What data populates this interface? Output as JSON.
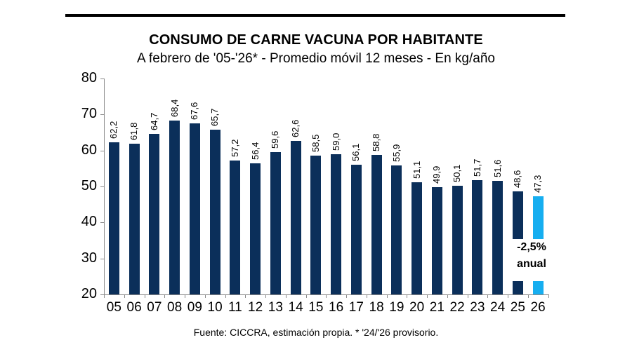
{
  "header": {
    "title": "CONSUMO DE CARNE VACUNA POR HABITANTE",
    "subtitle": "A febrero de '05-'26* - Promedio móvil 12 meses -  En kg/año"
  },
  "footer": {
    "source": "Fuente: CICCRA, estimación propia. * '24/'26 provisorio."
  },
  "annotation": {
    "line1": "-2,5%",
    "line2": "anual"
  },
  "colors": {
    "bar_main": "#0b2f5a",
    "bar_highlight": "#16aef0",
    "axis": "#8a8a8a"
  },
  "chart_data": {
    "type": "bar",
    "title": "CONSUMO DE CARNE VACUNA POR HABITANTE",
    "subtitle": "A febrero de '05-'26* - Promedio móvil 12 meses -  En kg/año",
    "xlabel": "",
    "ylabel": "kg/año",
    "ylim": [
      20,
      80
    ],
    "yticks": [
      20,
      30,
      40,
      50,
      60,
      70,
      80
    ],
    "grid": false,
    "legend": "none",
    "categories": [
      "05",
      "06",
      "07",
      "08",
      "09",
      "10",
      "11",
      "12",
      "13",
      "14",
      "15",
      "16",
      "17",
      "18",
      "19",
      "20",
      "21",
      "22",
      "23",
      "24",
      "25",
      "26"
    ],
    "values": [
      62.2,
      61.8,
      64.7,
      68.4,
      67.6,
      65.7,
      57.2,
      56.4,
      59.6,
      62.6,
      58.5,
      59.0,
      56.1,
      58.8,
      55.9,
      51.1,
      49.9,
      50.1,
      51.7,
      51.6,
      48.6,
      47.3
    ],
    "value_labels": [
      "62,2",
      "61,8",
      "64,7",
      "68,4",
      "67,6",
      "65,7",
      "57,2",
      "56,4",
      "59,6",
      "62,6",
      "58,5",
      "59,0",
      "56,1",
      "58,8",
      "55,9",
      "51,1",
      "49,9",
      "50,1",
      "51,7",
      "51,6",
      "48,6",
      "47,3"
    ],
    "highlight_index": 21,
    "annotations": [
      "-2,5% anual"
    ],
    "source": "Fuente: CICCRA, estimación propia. * '24/'26 provisorio."
  }
}
